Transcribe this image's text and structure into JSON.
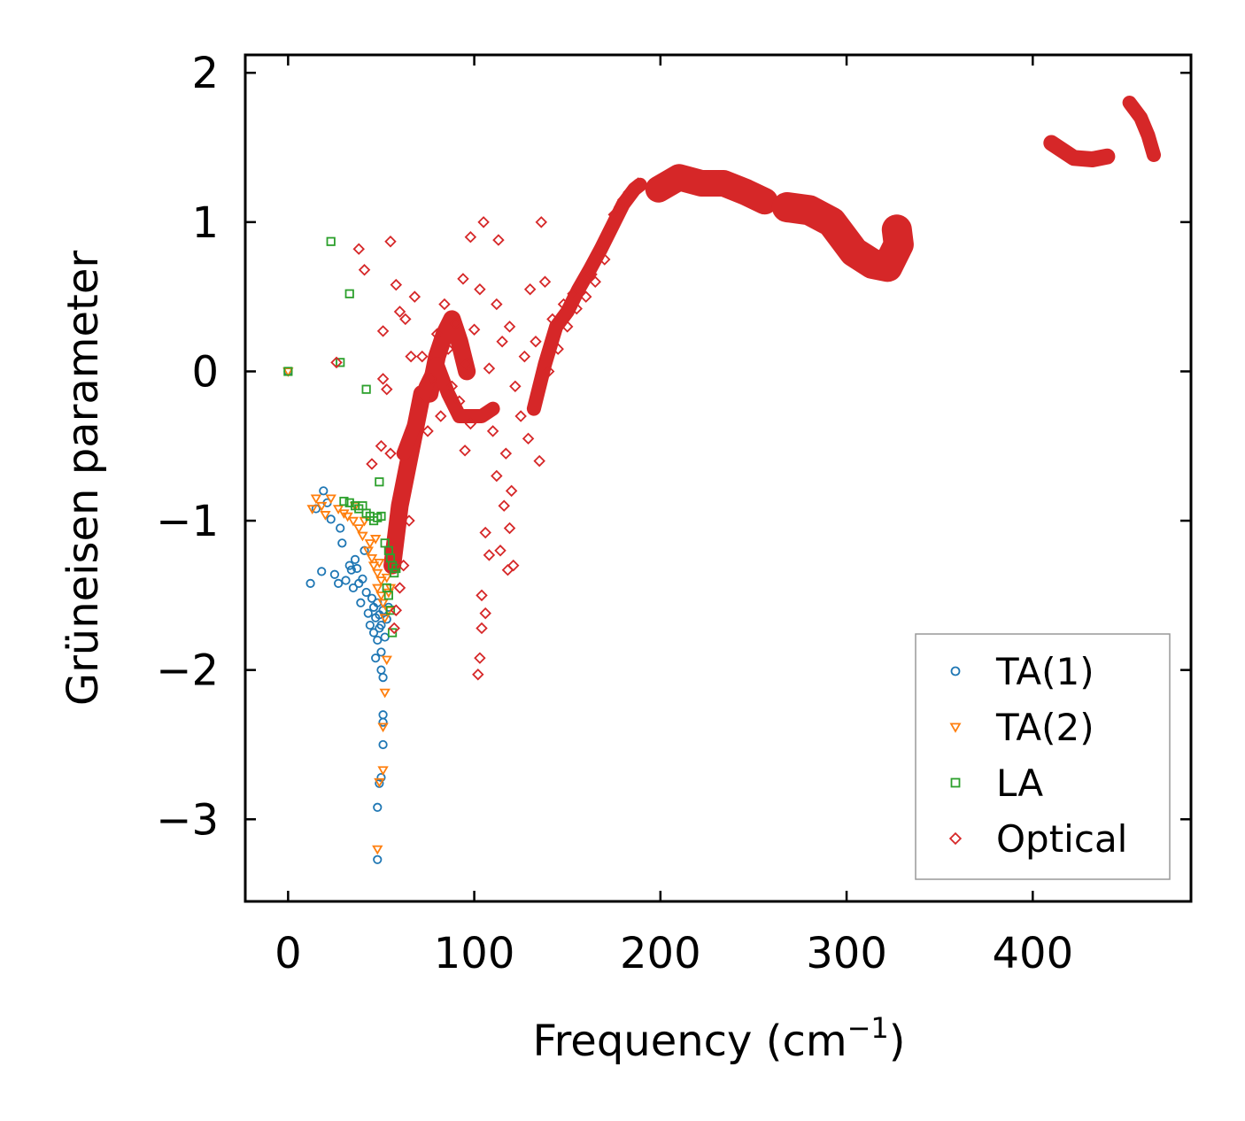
{
  "chart_data": {
    "type": "scatter",
    "xlabel": "Frequency (cm",
    "xlabel_superscript": "−1",
    "xlabel_suffix": ")",
    "ylabel": "Grüneisen parameter",
    "xlim": [
      -23,
      485
    ],
    "ylim": [
      -3.55,
      2.12
    ],
    "x_ticks": [
      0,
      100,
      200,
      300,
      400
    ],
    "x_tick_labels": [
      "0",
      "100",
      "200",
      "300",
      "400"
    ],
    "y_ticks": [
      -3,
      -2,
      -1,
      0,
      1,
      2
    ],
    "y_tick_labels": [
      "−3",
      "−2",
      "−1",
      "0",
      "1",
      "2"
    ],
    "legend_position": "lower-right",
    "series": [
      {
        "name": "TA(1)",
        "marker": "circle",
        "color": "#1f77b4",
        "points": [
          [
            0,
            0
          ],
          [
            12,
            -1.42
          ],
          [
            15,
            -0.92
          ],
          [
            18,
            -1.34
          ],
          [
            19,
            -0.8
          ],
          [
            21,
            -0.88
          ],
          [
            23,
            -0.99
          ],
          [
            25,
            -1.36
          ],
          [
            27,
            -1.42
          ],
          [
            28,
            -1.05
          ],
          [
            29,
            -1.15
          ],
          [
            31,
            -1.4
          ],
          [
            33,
            -1.3
          ],
          [
            34,
            -1.33
          ],
          [
            35,
            -1.45
          ],
          [
            36,
            -1.26
          ],
          [
            37,
            -1.32
          ],
          [
            38,
            -1.42
          ],
          [
            39,
            -1.55
          ],
          [
            40,
            -1.39
          ],
          [
            41,
            -1.2
          ],
          [
            42,
            -1.48
          ],
          [
            43,
            -1.62
          ],
          [
            44,
            -1.7
          ],
          [
            45,
            -1.52
          ],
          [
            46,
            -1.58
          ],
          [
            46,
            -1.75
          ],
          [
            47,
            -1.92
          ],
          [
            47,
            -1.65
          ],
          [
            48,
            -1.8
          ],
          [
            48,
            -1.55
          ],
          [
            49,
            -1.72
          ],
          [
            49,
            -1.63
          ],
          [
            50,
            -1.88
          ],
          [
            50,
            -2.0
          ],
          [
            50,
            -1.7
          ],
          [
            51,
            -2.05
          ],
          [
            51,
            -1.6
          ],
          [
            52,
            -1.78
          ],
          [
            53,
            -1.66
          ],
          [
            51,
            -2.3
          ],
          [
            51,
            -2.35
          ],
          [
            51,
            -2.5
          ],
          [
            50,
            -2.72
          ],
          [
            49,
            -2.76
          ],
          [
            48,
            -2.92
          ],
          [
            48,
            -3.27
          ],
          [
            54,
            -1.58
          ]
        ]
      },
      {
        "name": "TA(2)",
        "marker": "triangle-down",
        "color": "#ff7f0e",
        "points": [
          [
            0,
            0
          ],
          [
            13,
            -0.92
          ],
          [
            15,
            -0.85
          ],
          [
            18,
            -0.9
          ],
          [
            20,
            -0.96
          ],
          [
            23,
            -0.85
          ],
          [
            27,
            -0.92
          ],
          [
            30,
            -0.95
          ],
          [
            32,
            -0.97
          ],
          [
            35,
            -1.0
          ],
          [
            36,
            -0.9
          ],
          [
            38,
            -1.05
          ],
          [
            40,
            -1.1
          ],
          [
            41,
            -1.0
          ],
          [
            43,
            -1.2
          ],
          [
            44,
            -1.15
          ],
          [
            45,
            -1.25
          ],
          [
            46,
            -1.3
          ],
          [
            47,
            -1.12
          ],
          [
            48,
            -1.35
          ],
          [
            48,
            -1.45
          ],
          [
            49,
            -1.28
          ],
          [
            50,
            -1.4
          ],
          [
            50,
            -1.5
          ],
          [
            51,
            -1.55
          ],
          [
            52,
            -1.65
          ],
          [
            53,
            -1.38
          ],
          [
            54,
            -1.48
          ],
          [
            54,
            -1.6
          ],
          [
            55,
            -1.45
          ],
          [
            53,
            -1.93
          ],
          [
            52,
            -2.15
          ],
          [
            51,
            -2.38
          ],
          [
            51,
            -2.67
          ],
          [
            49,
            -2.75
          ],
          [
            48,
            -3.2
          ]
        ]
      },
      {
        "name": "LA",
        "marker": "square",
        "color": "#2ca02c",
        "points": [
          [
            0,
            0
          ],
          [
            23,
            0.87
          ],
          [
            33,
            0.52
          ],
          [
            28,
            0.06
          ],
          [
            42,
            -0.12
          ],
          [
            49,
            -0.74
          ],
          [
            30,
            -0.87
          ],
          [
            33,
            -0.88
          ],
          [
            36,
            -0.9
          ],
          [
            38,
            -0.92
          ],
          [
            40,
            -0.9
          ],
          [
            42,
            -0.95
          ],
          [
            44,
            -0.97
          ],
          [
            46,
            -1.0
          ],
          [
            48,
            -0.98
          ],
          [
            50,
            -0.97
          ],
          [
            52,
            -1.15
          ],
          [
            54,
            -1.2
          ],
          [
            55,
            -1.25
          ],
          [
            56,
            -1.3
          ],
          [
            57,
            -1.35
          ],
          [
            58,
            -1.32
          ],
          [
            54,
            -1.5
          ],
          [
            55,
            -1.6
          ],
          [
            56,
            -1.75
          ],
          [
            53,
            -1.45
          ]
        ]
      },
      {
        "name": "Optical",
        "marker": "diamond",
        "color": "#d62728",
        "points": [
          [
            26,
            0.06
          ],
          [
            38,
            0.82
          ],
          [
            55,
            0.87
          ],
          [
            41,
            0.68
          ],
          [
            58,
            0.58
          ],
          [
            51,
            0.27
          ],
          [
            51,
            -0.05
          ],
          [
            50,
            -0.5
          ],
          [
            45,
            -0.62
          ],
          [
            55,
            -0.55
          ],
          [
            53,
            -0.12
          ],
          [
            60,
            0.4
          ],
          [
            63,
            0.35
          ],
          [
            66,
            0.1
          ],
          [
            68,
            0.5
          ],
          [
            70,
            -0.2
          ],
          [
            72,
            0.1
          ],
          [
            75,
            -0.4
          ],
          [
            77,
            -0.05
          ],
          [
            80,
            0.25
          ],
          [
            82,
            -0.3
          ],
          [
            84,
            0.45
          ],
          [
            86,
            0.15
          ],
          [
            88,
            -0.1
          ],
          [
            90,
            0.32
          ],
          [
            92,
            -0.2
          ],
          [
            94,
            0.62
          ],
          [
            96,
            0.05
          ],
          [
            98,
            -0.35
          ],
          [
            100,
            0.28
          ],
          [
            95,
            -0.53
          ],
          [
            98,
            0.9
          ],
          [
            103,
            0.55
          ],
          [
            105,
            1.0
          ],
          [
            108,
            0.02
          ],
          [
            110,
            -0.4
          ],
          [
            112,
            0.45
          ],
          [
            113,
            0.88
          ],
          [
            115,
            0.2
          ],
          [
            117,
            -0.55
          ],
          [
            119,
            0.3
          ],
          [
            120,
            -0.8
          ],
          [
            122,
            -0.1
          ],
          [
            125,
            -0.3
          ],
          [
            127,
            0.1
          ],
          [
            129,
            -0.45
          ],
          [
            130,
            0.55
          ],
          [
            133,
            0.2
          ],
          [
            135,
            -0.6
          ],
          [
            136,
            1.0
          ],
          [
            138,
            0.6
          ],
          [
            140,
            0.0
          ],
          [
            142,
            0.35
          ],
          [
            145,
            0.15
          ],
          [
            148,
            0.45
          ],
          [
            150,
            0.3
          ],
          [
            153,
            0.52
          ],
          [
            155,
            0.42
          ],
          [
            158,
            0.6
          ],
          [
            160,
            0.5
          ],
          [
            163,
            0.65
          ],
          [
            165,
            0.6
          ],
          [
            168,
            0.8
          ],
          [
            170,
            0.75
          ],
          [
            173,
            0.95
          ],
          [
            175,
            1.05
          ],
          [
            178,
            1.1
          ],
          [
            180,
            1.15
          ],
          [
            183,
            1.2
          ],
          [
            186,
            1.24
          ],
          [
            188,
            1.26
          ],
          [
            106,
            -1.08
          ],
          [
            108,
            -1.23
          ],
          [
            104,
            -1.5
          ],
          [
            106,
            -1.62
          ],
          [
            104,
            -1.72
          ],
          [
            103,
            -1.92
          ],
          [
            102,
            -2.03
          ],
          [
            114,
            -1.2
          ],
          [
            118,
            -1.33
          ],
          [
            121,
            -1.3
          ],
          [
            116,
            -0.9
          ],
          [
            112,
            -0.7
          ],
          [
            119,
            -1.05
          ],
          [
            65,
            -1.0
          ],
          [
            62,
            -1.3
          ],
          [
            60,
            -1.45
          ],
          [
            58,
            -1.6
          ],
          [
            57,
            -1.72
          ]
        ]
      }
    ],
    "optical_bands": [
      {
        "points": [
          [
            56,
            -1.3
          ],
          [
            60,
            -0.9
          ],
          [
            64,
            -0.65
          ],
          [
            68,
            -0.4
          ],
          [
            72,
            -0.15
          ],
          [
            76,
            -0.15
          ],
          [
            80,
            0.1
          ],
          [
            84,
            0.25
          ],
          [
            88,
            0.35
          ],
          [
            92,
            0.2
          ],
          [
            96,
            0.0
          ]
        ],
        "width": 20
      },
      {
        "points": [
          [
            62,
            -0.55
          ],
          [
            68,
            -0.35
          ],
          [
            74,
            -0.1
          ],
          [
            80,
            0.05
          ],
          [
            86,
            -0.15
          ],
          [
            92,
            -0.3
          ],
          [
            98,
            -0.3
          ],
          [
            104,
            -0.3
          ],
          [
            110,
            -0.25
          ]
        ],
        "width": 16
      },
      {
        "points": [
          [
            132,
            -0.25
          ],
          [
            138,
            0.05
          ],
          [
            144,
            0.3
          ],
          [
            150,
            0.4
          ],
          [
            156,
            0.55
          ],
          [
            162,
            0.68
          ],
          [
            168,
            0.82
          ],
          [
            174,
            0.97
          ],
          [
            180,
            1.12
          ],
          [
            186,
            1.22
          ],
          [
            189,
            1.25
          ]
        ],
        "width": 16
      },
      {
        "points": [
          [
            199,
            1.22
          ],
          [
            210,
            1.3
          ],
          [
            222,
            1.26
          ],
          [
            234,
            1.26
          ],
          [
            246,
            1.2
          ],
          [
            256,
            1.14
          ]
        ],
        "width": 30
      },
      {
        "points": [
          [
            268,
            1.1
          ],
          [
            280,
            1.08
          ],
          [
            292,
            1.0
          ],
          [
            304,
            0.8
          ],
          [
            314,
            0.72
          ],
          [
            322,
            0.7
          ],
          [
            328,
            0.85
          ],
          [
            327,
            0.95
          ]
        ],
        "width": 34
      },
      {
        "points": [
          [
            410,
            1.53
          ],
          [
            422,
            1.43
          ],
          [
            432,
            1.42
          ],
          [
            440,
            1.44
          ]
        ],
        "width": 18
      },
      {
        "points": [
          [
            452,
            1.8
          ],
          [
            458,
            1.7
          ],
          [
            462,
            1.58
          ],
          [
            465,
            1.45
          ]
        ],
        "width": 16
      }
    ]
  }
}
